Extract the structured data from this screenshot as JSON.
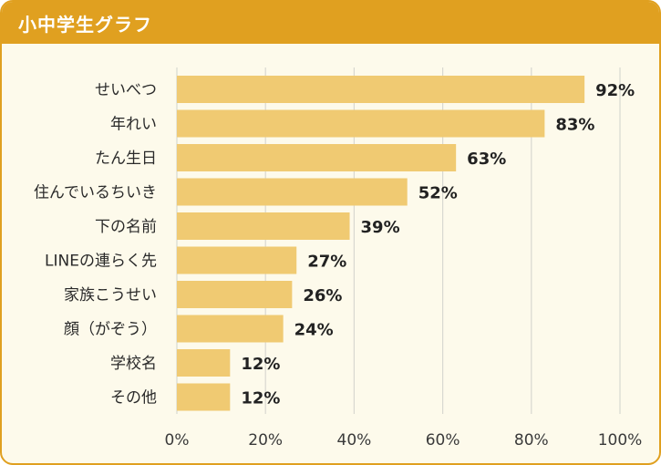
{
  "title": "小中学生グラフ",
  "colors": {
    "accent": "#e0a020",
    "bar": "#f0ca72",
    "panel": "#fdfaeb",
    "grid": "#d8d8d0"
  },
  "chart_data": {
    "type": "bar",
    "orientation": "horizontal",
    "title": "小中学生グラフ",
    "xlabel": "",
    "ylabel": "",
    "xlim": [
      0,
      100
    ],
    "categories": [
      "せいべつ",
      "年れい",
      "たん生日",
      "住んでいるちいき",
      "下の名前",
      "LINEの連らく先",
      "家族こうせい",
      "顔（がぞう）",
      "学校名",
      "その他"
    ],
    "values": [
      92,
      83,
      63,
      52,
      39,
      27,
      26,
      24,
      12,
      12
    ],
    "value_labels": [
      "92%",
      "83%",
      "63%",
      "52%",
      "39%",
      "27%",
      "26%",
      "24%",
      "12%",
      "12%"
    ],
    "ticks": [
      0,
      20,
      40,
      60,
      80,
      100
    ],
    "tick_labels": [
      "0%",
      "20%",
      "40%",
      "60%",
      "80%",
      "100%"
    ],
    "grid": true
  }
}
